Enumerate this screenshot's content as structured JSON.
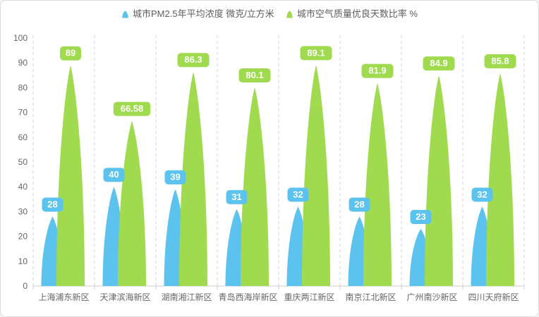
{
  "legend": {
    "items": [
      {
        "label": "城市PM2.5年平均浓度 微克/立方米",
        "color": "#5cc3ee"
      },
      {
        "label": "城市空气质量优良天数比率 %",
        "color": "#a0db4f"
      }
    ]
  },
  "chart_data": {
    "type": "bar",
    "variant": "pictorial-petal-bars",
    "title": "",
    "xlabel": "",
    "ylabel": "",
    "categories": [
      "上海浦东新区",
      "天津滨海新区",
      "湖南湘江新区",
      "青岛西海岸新区",
      "重庆两江新区",
      "南京江北新区",
      "广州南沙新区",
      "四川天府新区"
    ],
    "series": [
      {
        "name": "城市PM2.5年平均浓度 微克/立方米",
        "color": "#5cc3ee",
        "values": [
          28,
          40,
          39,
          31,
          32,
          28,
          23,
          32
        ]
      },
      {
        "name": "城市空气质量优良天数比率 %",
        "color": "#a0db4f",
        "values": [
          89,
          66.58,
          86.3,
          80.1,
          89.1,
          81.9,
          84.9,
          85.8
        ]
      }
    ],
    "ylim": [
      0,
      100
    ],
    "yticks": [
      0,
      10,
      20,
      30,
      40,
      50,
      60,
      70,
      80,
      90,
      100
    ],
    "grid": "vertical-dashed-splitlines",
    "legend_position": "top",
    "colors": {
      "axis_line": "#cccccc",
      "split_line": "#d6d6d6",
      "tick_label": "#666666",
      "badge_text": "#ffffff"
    }
  }
}
